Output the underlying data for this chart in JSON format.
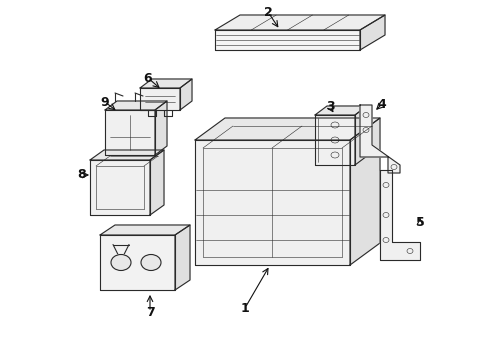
{
  "background_color": "#ffffff",
  "line_color": "#2a2a2a",
  "label_color": "#111111",
  "fig_width": 4.9,
  "fig_height": 3.6,
  "dpi": 100,
  "lw": 0.8,
  "lw_thin": 0.4,
  "lw_label_arrow": 0.7
}
